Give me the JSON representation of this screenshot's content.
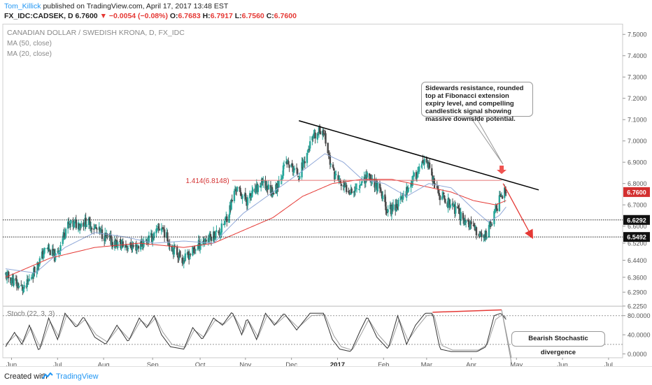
{
  "header": {
    "user": "Tom_Killick",
    "published": "published on TradingView.com, April 17, 2017 13:48 EST",
    "symbol": "FX_IDC:CADSEK, D",
    "last": "6.7600",
    "change": "−0.0054 (−0.08%)",
    "o_label": "O:",
    "o": "6.7683",
    "h_label": "H:",
    "h": "6.7917",
    "l_label": "L:",
    "l": "6.7560",
    "c_label": "C:",
    "c": "6.7600"
  },
  "legend": {
    "title": "CANADIAN DOLLAR / SWEDISH KRONA, D, FX_IDC",
    "ma50": "MA (50, close)",
    "ma20": "MA (20, close)"
  },
  "annotations": {
    "resistance_note": "Sidewards resistance, rounded top at Fibonacci extension expiry level, and compelling candlestick signal showing massive downside potential.",
    "fib_label": "1.414(6.8148)",
    "stoch_note": "Bearish Stochastic divergence"
  },
  "footer": {
    "created": "Created with",
    "brand": "TradingView"
  },
  "colors": {
    "up": "#26a69a",
    "down": "#4a4a4a",
    "ma50": "#e53935",
    "ma20": "#90a8d8",
    "trend": "#000000",
    "fib": "#e57373",
    "arrow": "#e53935",
    "accent": "#2196f3"
  },
  "chart_data": {
    "type": "candlestick",
    "symbol": "CADSEK",
    "price_axis": {
      "ylim": [
        6.225,
        7.55
      ],
      "ticks": [
        "7.5000",
        "7.4000",
        "7.3000",
        "7.2000",
        "7.1000",
        "7.0000",
        "6.9000",
        "6.8000",
        "6.7000",
        "6.6000",
        "6.5200",
        "6.4400",
        "6.3600",
        "6.2900",
        "6.2250"
      ],
      "tick_values": [
        7.5,
        7.4,
        7.3,
        7.2,
        7.1,
        7.0,
        6.9,
        6.8,
        6.7,
        6.6,
        6.52,
        6.44,
        6.36,
        6.29,
        6.225
      ],
      "badges": [
        {
          "text": "6.7600",
          "value": 6.76,
          "style": "last"
        },
        {
          "text": "6.6292",
          "value": 6.6292,
          "style": "level"
        },
        {
          "text": "6.5492",
          "value": 6.5492,
          "style": "level"
        }
      ]
    },
    "x_axis": {
      "labels": [
        "Jun",
        "Jul",
        "Aug",
        "Sep",
        "Oct",
        "Nov",
        "Dec",
        "2017",
        "Feb",
        "Mar",
        "Apr",
        "May",
        "Jun",
        "Jul"
      ],
      "label_days": [
        8,
        70,
        132,
        198,
        262,
        323,
        385,
        447,
        509,
        567,
        627,
        688,
        750,
        812
      ]
    },
    "last_day": 674,
    "anchors": [
      [
        0,
        6.37
      ],
      [
        25,
        6.3
      ],
      [
        55,
        6.5
      ],
      [
        68,
        6.45
      ],
      [
        82,
        6.6
      ],
      [
        110,
        6.62
      ],
      [
        145,
        6.52
      ],
      [
        175,
        6.5
      ],
      [
        198,
        6.55
      ],
      [
        210,
        6.6
      ],
      [
        222,
        6.51
      ],
      [
        240,
        6.44
      ],
      [
        262,
        6.52
      ],
      [
        290,
        6.58
      ],
      [
        300,
        6.66
      ],
      [
        310,
        6.78
      ],
      [
        325,
        6.72
      ],
      [
        345,
        6.8
      ],
      [
        362,
        6.76
      ],
      [
        378,
        6.9
      ],
      [
        395,
        6.84
      ],
      [
        412,
        7.0
      ],
      [
        427,
        7.06
      ],
      [
        440,
        6.86
      ],
      [
        455,
        6.78
      ],
      [
        470,
        6.77
      ],
      [
        487,
        6.84
      ],
      [
        500,
        6.79
      ],
      [
        515,
        6.67
      ],
      [
        530,
        6.71
      ],
      [
        545,
        6.8
      ],
      [
        560,
        6.88
      ],
      [
        568,
        6.9
      ],
      [
        580,
        6.76
      ],
      [
        600,
        6.7
      ],
      [
        615,
        6.64
      ],
      [
        632,
        6.58
      ],
      [
        645,
        6.55
      ],
      [
        655,
        6.62
      ],
      [
        667,
        6.75
      ],
      [
        674,
        6.76
      ]
    ],
    "ma20_anchors": [
      [
        0,
        6.4
      ],
      [
        40,
        6.38
      ],
      [
        80,
        6.5
      ],
      [
        120,
        6.57
      ],
      [
        160,
        6.55
      ],
      [
        200,
        6.52
      ],
      [
        240,
        6.53
      ],
      [
        280,
        6.52
      ],
      [
        320,
        6.66
      ],
      [
        360,
        6.76
      ],
      [
        400,
        6.86
      ],
      [
        430,
        6.94
      ],
      [
        455,
        6.9
      ],
      [
        480,
        6.82
      ],
      [
        510,
        6.8
      ],
      [
        540,
        6.74
      ],
      [
        570,
        6.8
      ],
      [
        600,
        6.78
      ],
      [
        630,
        6.68
      ],
      [
        650,
        6.62
      ],
      [
        665,
        6.65
      ],
      [
        674,
        6.69
      ]
    ],
    "ma50_anchors": [
      [
        0,
        6.36
      ],
      [
        60,
        6.45
      ],
      [
        120,
        6.5
      ],
      [
        180,
        6.52
      ],
      [
        240,
        6.5
      ],
      [
        280,
        6.52
      ],
      [
        320,
        6.58
      ],
      [
        360,
        6.64
      ],
      [
        400,
        6.74
      ],
      [
        440,
        6.8
      ],
      [
        480,
        6.82
      ],
      [
        520,
        6.82
      ],
      [
        560,
        6.79
      ],
      [
        600,
        6.76
      ],
      [
        630,
        6.72
      ],
      [
        660,
        6.7
      ],
      [
        674,
        6.72
      ]
    ],
    "horizontal_levels": [
      6.6292,
      6.5492
    ],
    "fib_level": {
      "label": "1.414(6.8148)",
      "value": 6.8148,
      "from_day": 305,
      "to_day": 668
    },
    "trendline": {
      "from": [
        395,
        7.095
      ],
      "to": [
        718,
        6.77
      ]
    },
    "forecast_arrow": {
      "from": [
        670,
        6.8
      ],
      "to": [
        708,
        6.555
      ]
    },
    "stochastic": {
      "title": "Stoch (22, 3, 3)",
      "ylim": [
        -8,
        100
      ],
      "ticks": [
        "80.0000",
        "40.0000",
        "0.0000"
      ],
      "tick_values": [
        80,
        40,
        0
      ],
      "k_anchors": [
        [
          0,
          15
        ],
        [
          12,
          45
        ],
        [
          22,
          20
        ],
        [
          32,
          60
        ],
        [
          45,
          5
        ],
        [
          58,
          75
        ],
        [
          70,
          30
        ],
        [
          80,
          85
        ],
        [
          95,
          55
        ],
        [
          105,
          78
        ],
        [
          120,
          35
        ],
        [
          135,
          20
        ],
        [
          150,
          60
        ],
        [
          165,
          25
        ],
        [
          180,
          75
        ],
        [
          190,
          55
        ],
        [
          200,
          80
        ],
        [
          210,
          40
        ],
        [
          222,
          15
        ],
        [
          240,
          10
        ],
        [
          252,
          55
        ],
        [
          265,
          30
        ],
        [
          280,
          75
        ],
        [
          292,
          60
        ],
        [
          305,
          88
        ],
        [
          318,
          40
        ],
        [
          325,
          75
        ],
        [
          338,
          30
        ],
        [
          350,
          85
        ],
        [
          362,
          60
        ],
        [
          375,
          85
        ],
        [
          392,
          50
        ],
        [
          410,
          85
        ],
        [
          428,
          85
        ],
        [
          440,
          30
        ],
        [
          450,
          10
        ],
        [
          465,
          5
        ],
        [
          478,
          50
        ],
        [
          487,
          78
        ],
        [
          500,
          35
        ],
        [
          515,
          10
        ],
        [
          528,
          80
        ],
        [
          540,
          20
        ],
        [
          552,
          60
        ],
        [
          565,
          85
        ],
        [
          575,
          85
        ],
        [
          585,
          10
        ],
        [
          600,
          5
        ],
        [
          620,
          5
        ],
        [
          635,
          5
        ],
        [
          647,
          15
        ],
        [
          658,
          80
        ],
        [
          667,
          85
        ],
        [
          674,
          72
        ]
      ],
      "d_anchors": [
        [
          0,
          20
        ],
        [
          14,
          40
        ],
        [
          24,
          25
        ],
        [
          34,
          55
        ],
        [
          47,
          12
        ],
        [
          60,
          68
        ],
        [
          72,
          35
        ],
        [
          82,
          80
        ],
        [
          97,
          58
        ],
        [
          107,
          72
        ],
        [
          122,
          40
        ],
        [
          137,
          25
        ],
        [
          152,
          55
        ],
        [
          167,
          30
        ],
        [
          182,
          70
        ],
        [
          192,
          58
        ],
        [
          202,
          75
        ],
        [
          212,
          45
        ],
        [
          224,
          20
        ],
        [
          242,
          14
        ],
        [
          254,
          50
        ],
        [
          267,
          35
        ],
        [
          282,
          70
        ],
        [
          294,
          62
        ],
        [
          307,
          82
        ],
        [
          320,
          45
        ],
        [
          327,
          70
        ],
        [
          340,
          35
        ],
        [
          352,
          80
        ],
        [
          364,
          62
        ],
        [
          377,
          80
        ],
        [
          394,
          55
        ],
        [
          412,
          80
        ],
        [
          430,
          82
        ],
        [
          442,
          38
        ],
        [
          452,
          15
        ],
        [
          467,
          8
        ],
        [
          480,
          45
        ],
        [
          489,
          72
        ],
        [
          502,
          40
        ],
        [
          517,
          14
        ],
        [
          530,
          72
        ],
        [
          542,
          28
        ],
        [
          554,
          55
        ],
        [
          567,
          80
        ],
        [
          577,
          82
        ],
        [
          587,
          18
        ],
        [
          602,
          8
        ],
        [
          622,
          8
        ],
        [
          637,
          8
        ],
        [
          649,
          20
        ],
        [
          660,
          72
        ],
        [
          669,
          82
        ],
        [
          674,
          76
        ]
      ],
      "divergence_line": {
        "from": [
          575,
          87
        ],
        "to": [
          668,
          92
        ]
      }
    }
  }
}
